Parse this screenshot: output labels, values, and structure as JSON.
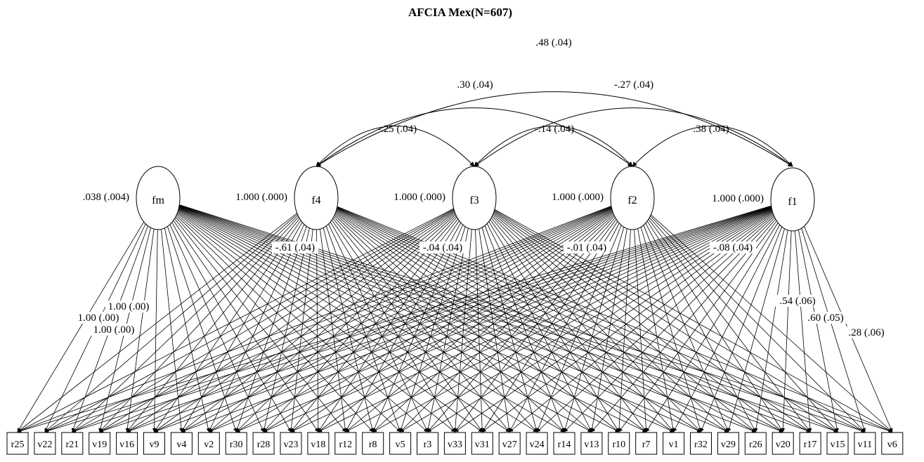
{
  "title": "AFCIA Mex(N=607)",
  "factors": [
    {
      "id": "fm",
      "label": "fm",
      "variance": ".038 (.004)"
    },
    {
      "id": "f4",
      "label": "f4",
      "variance": "1.000 (.000)"
    },
    {
      "id": "f3",
      "label": "f3",
      "variance": "1.000 (.000)"
    },
    {
      "id": "f2",
      "label": "f2",
      "variance": "1.000 (.000)"
    },
    {
      "id": "f1",
      "label": "f1",
      "variance": "1.000 (.000)"
    }
  ],
  "covariances": [
    {
      "from": "f4",
      "to": "f1",
      "label": ".48 (.04)"
    },
    {
      "from": "f4",
      "to": "f2",
      "label": ".30 (.04)"
    },
    {
      "from": "f3",
      "to": "f1",
      "label": "-.27 (.04)"
    },
    {
      "from": "f4",
      "to": "f3",
      "label": "-.25 (.04)"
    },
    {
      "from": "f3",
      "to": "f2",
      "label": "-.14 (.04)"
    },
    {
      "from": "f2",
      "to": "f1",
      "label": ".38 (.04)"
    }
  ],
  "loading_labels": [
    {
      "factor": "f4",
      "label": "-.61 (.04)"
    },
    {
      "factor": "f3",
      "label": "-.04 (.04)"
    },
    {
      "factor": "f2",
      "label": "-.01 (.04)"
    },
    {
      "factor": "f1",
      "label": "-.08 (.04)"
    },
    {
      "factor": "fm",
      "label": "1.00 (.00)"
    },
    {
      "factor": "fm",
      "label": "1.00 (.00)"
    },
    {
      "factor": "fm",
      "label": "1.00 (.00)"
    },
    {
      "factor": "f1",
      "label": ".54 (.06)"
    },
    {
      "factor": "f1",
      "label": ".60 (.05)"
    },
    {
      "factor": "f1",
      "label": ".28 (.06)"
    }
  ],
  "indicators": [
    "r25",
    "v22",
    "r21",
    "v19",
    "v16",
    "v9",
    "v4",
    "v2",
    "r30",
    "r28",
    "v23",
    "v18",
    "r12",
    "r8",
    "v5",
    "r3",
    "v33",
    "v31",
    "v27",
    "v24",
    "r14",
    "v13",
    "r10",
    "r7",
    "v1",
    "r32",
    "v29",
    "r26",
    "v20",
    "r17",
    "v15",
    "v11",
    "v6"
  ]
}
